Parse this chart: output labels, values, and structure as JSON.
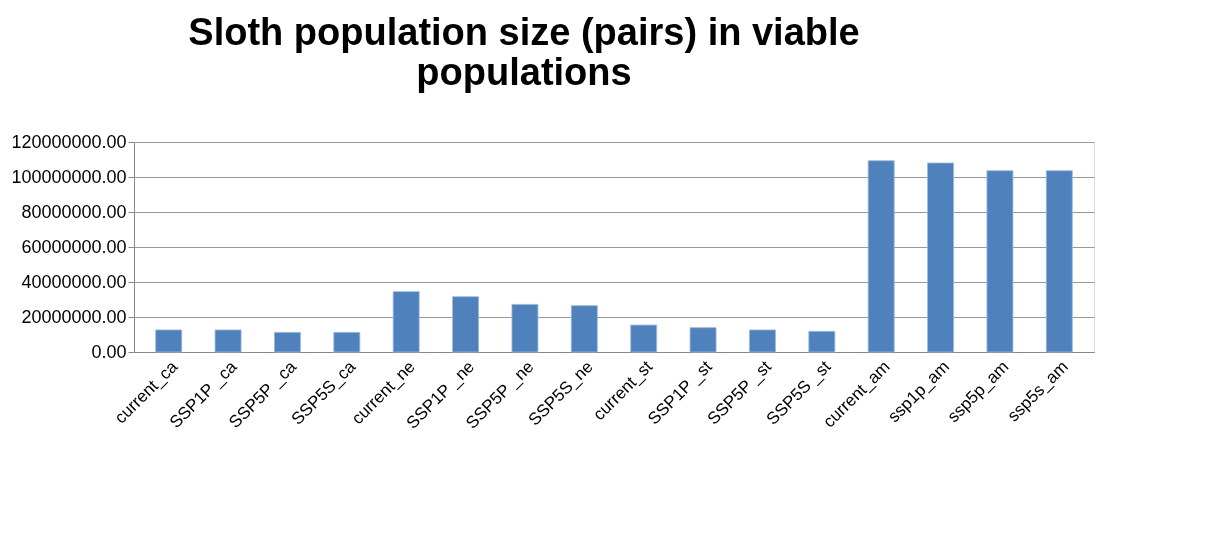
{
  "chart_data": {
    "type": "bar",
    "title": [
      "Sloth population size (pairs) in viable",
      "populations"
    ],
    "categories": [
      "current_ca",
      "SSP1P _ca",
      "SSP5P _ca",
      "SSP5S_ca",
      "current_ne",
      "SSP1P _ne",
      "SSP5P _ne",
      "SSP5S_ne",
      "current_st",
      "SSP1P _st",
      "SSP5P _st",
      "SSP5S _st",
      "current_am",
      "ssp1p_am",
      "ssp5p_am",
      "ssp5s_am"
    ],
    "values": [
      12600000,
      12600000,
      11200000,
      11200000,
      34500000,
      31600000,
      27200000,
      26500000,
      15400000,
      13900000,
      12600000,
      11800000,
      109300000,
      108000000,
      103600000,
      103600000
    ],
    "color": "#4f81bd",
    "ylim": [
      0,
      120000000
    ],
    "yticks": [
      {
        "value": 0,
        "label": "0.00"
      },
      {
        "value": 20000000,
        "label": "20000000.00"
      },
      {
        "value": 40000000,
        "label": "40000000.00"
      },
      {
        "value": 60000000,
        "label": "60000000.00"
      },
      {
        "value": 80000000,
        "label": "80000000.00"
      },
      {
        "value": 100000000,
        "label": "100000000.00"
      },
      {
        "value": 120000000,
        "label": "120000000.00"
      }
    ],
    "grid": "y"
  }
}
